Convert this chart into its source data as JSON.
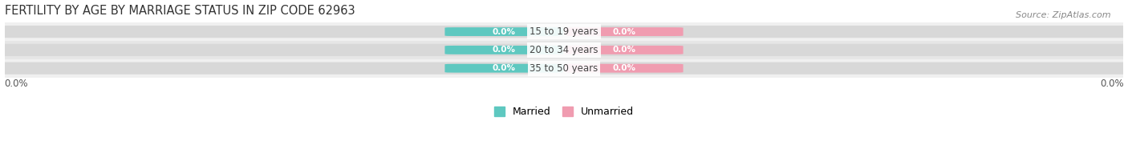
{
  "title": "FERTILITY BY AGE BY MARRIAGE STATUS IN ZIP CODE 62963",
  "source": "Source: ZipAtlas.com",
  "categories": [
    "15 to 19 years",
    "20 to 34 years",
    "35 to 50 years"
  ],
  "married_values": [
    0.0,
    0.0,
    0.0
  ],
  "unmarried_values": [
    0.0,
    0.0,
    0.0
  ],
  "married_color": "#5ec8c0",
  "unmarried_color": "#f09cb0",
  "row_bg_colors": [
    "#f0f0f0",
    "#e6e6e6",
    "#f0f0f0"
  ],
  "pill_bg_color": "#d8d8d8",
  "title_fontsize": 10.5,
  "source_fontsize": 8,
  "bar_label_fontsize": 7.5,
  "cat_label_fontsize": 8.5,
  "legend_fontsize": 9,
  "axis_label_fontsize": 8.5,
  "axis_label_left": "0.0%",
  "axis_label_right": "0.0%",
  "background_color": "#ffffff",
  "title_color": "#333333",
  "source_color": "#888888",
  "cat_label_color": "#444444",
  "axis_label_color": "#555555"
}
